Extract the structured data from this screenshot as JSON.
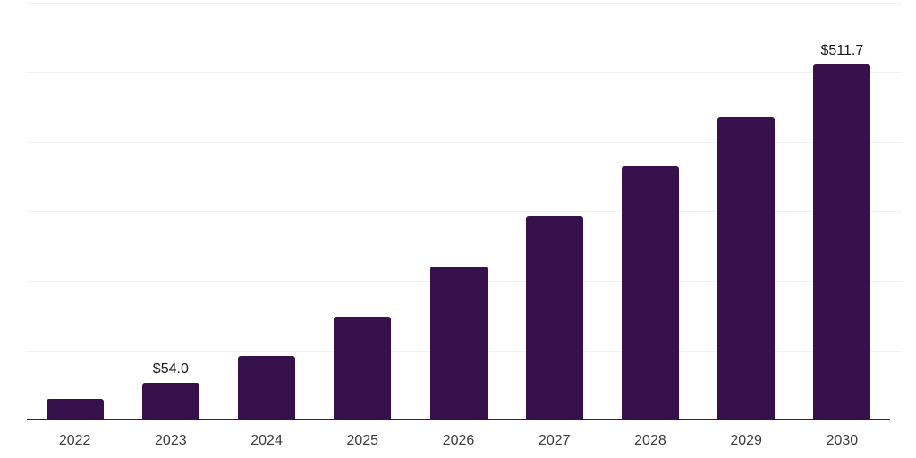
{
  "chart_data": {
    "type": "bar",
    "title": "",
    "categories": [
      "2022",
      "2023",
      "2024",
      "2025",
      "2026",
      "2027",
      "2028",
      "2029",
      "2030"
    ],
    "values": [
      30.0,
      54.0,
      92.5,
      148.0,
      221.0,
      292.0,
      364.0,
      436.0,
      511.7
    ],
    "value_labels": [
      "",
      "$54.0",
      "",
      "",
      "",
      "",
      "",
      "",
      "$511.7"
    ],
    "xlabel": "",
    "ylabel": "",
    "ylim": [
      0,
      600
    ],
    "grid_step": 100,
    "grid_visible": true,
    "y_tick_labels_visible": false,
    "legend": "none",
    "colors": {
      "bar": "#36114c",
      "grid": "#f2f2f2",
      "axis": "#2b2b2b",
      "tick_text": "#3c3c3c",
      "value_label_text": "#1a1a1a",
      "background": "#ffffff"
    }
  }
}
